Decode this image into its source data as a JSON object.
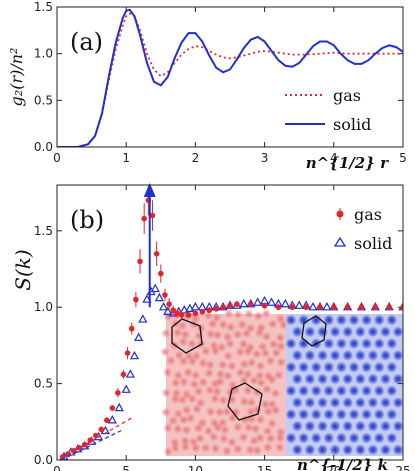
{
  "chart_data": [
    {
      "type": "line",
      "panel_label": "(a)",
      "ylabel": "g₂(r)/n²",
      "xlabel": "n^{1/2} r",
      "xlim": [
        0,
        5
      ],
      "ylim": [
        0,
        1.5
      ],
      "xticks": [
        0,
        1,
        2,
        3,
        4,
        5
      ],
      "yticks": [
        0.0,
        0.5,
        1.0,
        1.5
      ],
      "xtick_labels": [
        "0",
        "1",
        "2",
        "3",
        "4",
        "5"
      ],
      "ytick_labels": [
        "0.0",
        "0.5",
        "1.0",
        "1.5"
      ],
      "legend_position": "lower-right",
      "series": [
        {
          "name": "gas",
          "color": "#e0262b",
          "style": "dotted",
          "x": [
            0,
            0.3,
            0.45,
            0.55,
            0.65,
            0.75,
            0.85,
            0.95,
            1.0,
            1.05,
            1.12,
            1.2,
            1.3,
            1.4,
            1.5,
            1.6,
            1.7,
            1.8,
            1.9,
            2.0,
            2.1,
            2.2,
            2.3,
            2.4,
            2.5,
            2.6,
            2.7,
            2.8,
            2.9,
            3.0,
            3.2,
            3.4,
            3.6,
            3.8,
            4.0,
            4.2,
            4.4,
            4.6,
            4.8,
            5.0
          ],
          "values": [
            0,
            0,
            0.03,
            0.12,
            0.35,
            0.72,
            1.05,
            1.3,
            1.4,
            1.43,
            1.4,
            1.25,
            1.0,
            0.83,
            0.76,
            0.8,
            0.9,
            0.99,
            1.05,
            1.08,
            1.07,
            1.03,
            0.99,
            0.96,
            0.95,
            0.96,
            0.98,
            1.0,
            1.02,
            1.03,
            1.01,
            0.99,
            0.99,
            1.0,
            1.01,
            1.0,
            1.0,
            1.0,
            1.0,
            1.0
          ]
        },
        {
          "name": "solid",
          "color": "#1f2fd1",
          "style": "solid",
          "x": [
            0,
            0.3,
            0.45,
            0.55,
            0.65,
            0.75,
            0.85,
            0.95,
            1.0,
            1.05,
            1.12,
            1.2,
            1.3,
            1.4,
            1.5,
            1.6,
            1.7,
            1.8,
            1.9,
            2.0,
            2.1,
            2.2,
            2.3,
            2.4,
            2.5,
            2.6,
            2.7,
            2.8,
            2.9,
            3.0,
            3.1,
            3.2,
            3.3,
            3.4,
            3.5,
            3.6,
            3.7,
            3.8,
            3.9,
            4.0,
            4.1,
            4.2,
            4.3,
            4.4,
            4.5,
            4.6,
            4.7,
            4.8,
            4.9,
            5.0
          ],
          "values": [
            0,
            0,
            0.03,
            0.12,
            0.36,
            0.76,
            1.12,
            1.38,
            1.46,
            1.47,
            1.4,
            1.2,
            0.9,
            0.7,
            0.66,
            0.75,
            0.95,
            1.12,
            1.22,
            1.22,
            1.13,
            0.98,
            0.85,
            0.8,
            0.83,
            0.94,
            1.06,
            1.15,
            1.18,
            1.13,
            1.03,
            0.93,
            0.87,
            0.86,
            0.9,
            0.99,
            1.08,
            1.13,
            1.13,
            1.09,
            1.0,
            0.93,
            0.89,
            0.89,
            0.93,
            1.0,
            1.06,
            1.09,
            1.07,
            1.02
          ]
        }
      ]
    },
    {
      "type": "scatter",
      "panel_label": "(b)",
      "ylabel": "S(k)",
      "xlabel": "n^{-1/2} k",
      "xlim": [
        0,
        25
      ],
      "ylim": [
        0,
        1.8
      ],
      "xticks": [
        0,
        5,
        10,
        15,
        20,
        25
      ],
      "yticks": [
        0.0,
        0.5,
        1.0,
        1.5
      ],
      "xtick_labels": [
        "0",
        "5",
        "10",
        "15",
        "20",
        "25"
      ],
      "ytick_labels": [
        "0.0",
        "0.5",
        "1.0",
        "1.5"
      ],
      "legend_position": "top-right",
      "arrow_x": 6.7,
      "arrow_from_y": 1.0,
      "arrow_to_y": 1.8,
      "series": [
        {
          "name": "gas",
          "marker": "circle",
          "color": "#e0262b",
          "x": [
            0.4,
            0.8,
            1.2,
            1.6,
            2.0,
            2.4,
            2.8,
            3.2,
            3.6,
            4.0,
            4.4,
            4.8,
            5.1,
            5.4,
            5.7,
            6.0,
            6.3,
            6.6,
            6.9,
            7.2,
            7.5,
            7.8,
            8.1,
            8.4,
            8.7,
            9.0,
            9.5,
            10.0,
            10.5,
            11.0,
            11.5,
            12.0,
            12.5,
            13.0,
            14.0,
            15.0,
            16.0,
            17.0,
            18.0,
            19.0,
            20.0,
            21.0,
            22.0,
            23.0,
            24.0,
            25.0
          ],
          "values": [
            0.02,
            0.04,
            0.06,
            0.08,
            0.1,
            0.13,
            0.16,
            0.2,
            0.26,
            0.34,
            0.44,
            0.56,
            0.7,
            0.86,
            1.05,
            1.3,
            1.58,
            1.7,
            1.6,
            1.35,
            1.22,
            1.08,
            1.02,
            0.98,
            0.96,
            0.95,
            0.95,
            0.96,
            0.97,
            0.98,
            0.99,
            1.0,
            1.01,
            1.02,
            1.02,
            1.01,
            1.0,
            1.0,
            1.0,
            1.0,
            1.0,
            1.0,
            1.0,
            1.0,
            1.0,
            1.0
          ],
          "errors": [
            0.01,
            0.01,
            0.01,
            0.01,
            0.01,
            0.01,
            0.01,
            0.02,
            0.02,
            0.02,
            0.03,
            0.03,
            0.04,
            0.04,
            0.05,
            0.08,
            0.1,
            0.1,
            0.1,
            0.08,
            0.06,
            0.04,
            0.04,
            0.03,
            0.03,
            0.03,
            0.02,
            0.02,
            0.02,
            0.02,
            0.02,
            0.02,
            0.02,
            0.02,
            0.02,
            0.02,
            0.02,
            0.02,
            0.02,
            0.02,
            0.02,
            0.02,
            0.02,
            0.02,
            0.02,
            0.02
          ]
        },
        {
          "name": "solid",
          "marker": "triangle",
          "color": "#1f2fd1",
          "x": [
            0.5,
            1.0,
            1.5,
            2.0,
            2.5,
            3.0,
            3.5,
            4.0,
            4.5,
            5.0,
            5.3,
            5.6,
            5.9,
            6.2,
            6.5,
            6.8,
            7.1,
            7.4,
            7.7,
            8.0,
            8.4,
            8.8,
            9.2,
            9.6,
            10.0,
            10.5,
            11.0,
            11.5,
            12.0,
            12.5,
            13.0,
            13.5,
            14.0,
            14.5,
            15.0,
            15.5,
            16.0,
            16.5,
            17.0,
            17.5,
            18.0,
            18.5,
            19.0,
            19.5,
            20.0,
            21.0,
            22.0,
            23.0,
            24.0,
            25.0
          ],
          "values": [
            0.02,
            0.05,
            0.07,
            0.09,
            0.12,
            0.15,
            0.19,
            0.26,
            0.34,
            0.46,
            0.56,
            0.68,
            0.8,
            0.92,
            1.05,
            1.1,
            1.12,
            1.06,
            1.0,
            0.97,
            0.96,
            0.97,
            0.98,
            0.99,
            1.0,
            1.0,
            1.0,
            1.0,
            1.0,
            1.01,
            1.01,
            1.02,
            1.02,
            1.03,
            1.04,
            1.03,
            1.02,
            1.02,
            1.01,
            1.01,
            1.01,
            1.0,
            1.0,
            1.0,
            1.0,
            1.0,
            1.0,
            1.0,
            1.0,
            1.0
          ]
        }
      ]
    }
  ],
  "images": [
    {
      "name": "gas-snapshot",
      "tint": "#f2a0a0",
      "dot": "#e06464"
    },
    {
      "name": "solid-snapshot",
      "tint": "#b6c0f2",
      "dot": "#2c3fc8"
    }
  ]
}
